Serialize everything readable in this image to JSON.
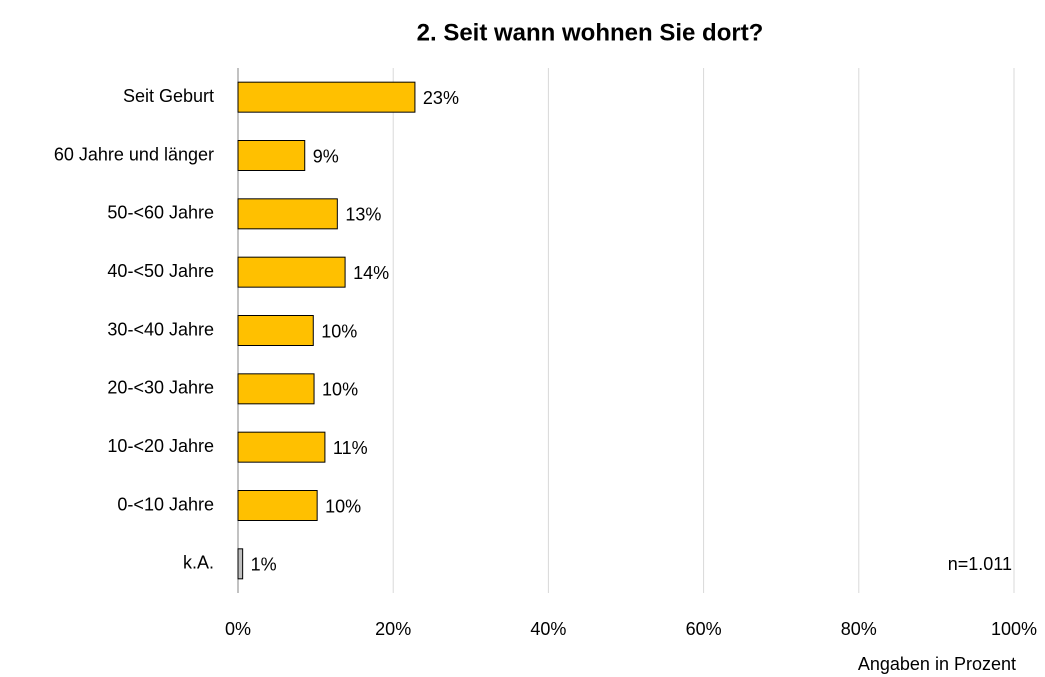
{
  "chart_data": {
    "type": "bar",
    "orientation": "horizontal",
    "title": "2. Seit wann wohnen Sie dort?",
    "categories": [
      "Seit Geburt",
      "60 Jahre und länger",
      "50-<60 Jahre",
      "40-<50 Jahre",
      "30-<40 Jahre",
      "20-<30 Jahre",
      "10-<20 Jahre",
      "0-<10 Jahre",
      "k.A."
    ],
    "values": [
      22.8,
      8.6,
      12.8,
      13.8,
      9.7,
      9.8,
      11.2,
      10.2,
      0.6
    ],
    "value_labels": [
      "23%",
      "9%",
      "13%",
      "14%",
      "10%",
      "10%",
      "11%",
      "10%",
      "1%"
    ],
    "colors": [
      "#ffc000",
      "#ffc000",
      "#ffc000",
      "#ffc000",
      "#ffc000",
      "#ffc000",
      "#ffc000",
      "#ffc000",
      "#bfbfbf"
    ],
    "xlim": [
      0,
      100
    ],
    "xticks": [
      {
        "value": 0,
        "label": "0%"
      },
      {
        "value": 20,
        "label": "20%"
      },
      {
        "value": 40,
        "label": "40%"
      },
      {
        "value": 60,
        "label": "60%"
      },
      {
        "value": 80,
        "label": "80%"
      },
      {
        "value": 100,
        "label": "100%"
      }
    ],
    "grid": true,
    "x_label": "Angaben in Prozent",
    "annotation": "n=1.011"
  }
}
